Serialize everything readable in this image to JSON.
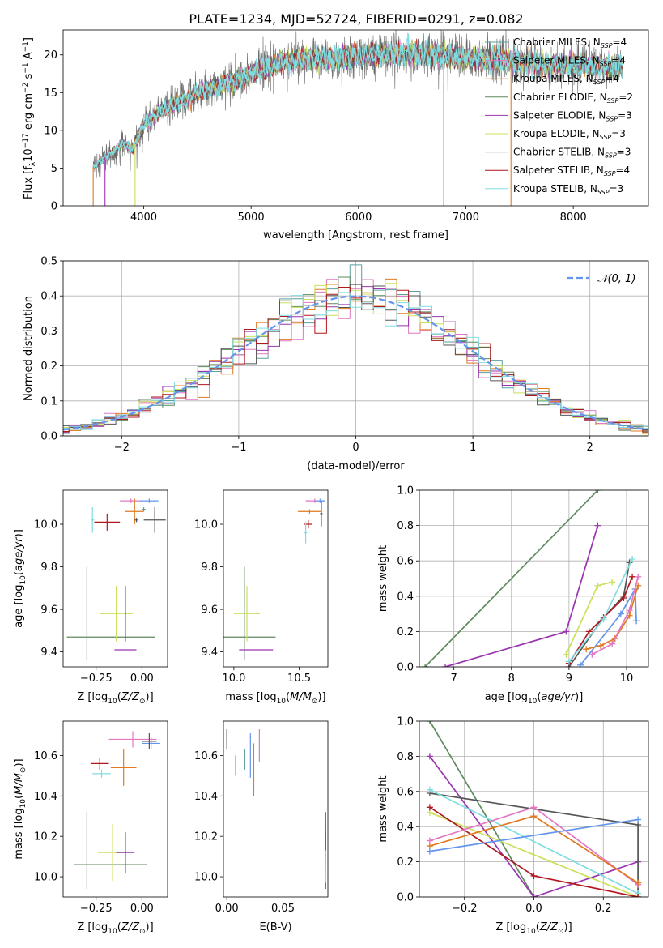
{
  "title": "PLATE=1234, MJD=52724, FIBERID=0291, z=0.082",
  "colors": {
    "Chabrier MILES": "#5aa0a0",
    "Salpeter MILES": "#e377c2",
    "Kroupa MILES": "#e07a20",
    "Chabrier ELODIE": "#5f8a5f",
    "Salpeter ELODIE": "#9a35b0",
    "Kroupa ELODIE": "#c8e05a",
    "Chabrier STELIB": "#555555",
    "Salpeter STELIB": "#b0171f",
    "Kroupa STELIB": "#7fdde0",
    "blue": "#6495ed"
  },
  "chart_data": [
    {
      "id": "spectrum",
      "type": "line",
      "xlabel": "wavelength [Angstrom, rest frame]",
      "ylabel": "Flux [f_λ10^-17 erg cm^-2 s^-1 A^-1]",
      "xlim": [
        3250,
        8700
      ],
      "ylim": [
        0,
        23.3
      ],
      "xticks": [
        4000,
        5000,
        6000,
        7000,
        8000
      ],
      "yticks": [
        0,
        5,
        10,
        15,
        20
      ],
      "legend_position": "top-right",
      "legend": [
        {
          "label": "Chabrier MILES, N",
          "sub": "SSP",
          "suffix": "=4",
          "color": "#5aa0a0"
        },
        {
          "label": "Salpeter MILES, N",
          "sub": "SSP",
          "suffix": "=4",
          "color": "#e377c2"
        },
        {
          "label": "Kroupa MILES, N",
          "sub": "SSP",
          "suffix": "=4",
          "color": "#e07a20"
        },
        {
          "label": "Chabrier ELODIE, N",
          "sub": "SSP",
          "suffix": "=2",
          "color": "#5f8a5f"
        },
        {
          "label": "Salpeter ELODIE, N",
          "sub": "SSP",
          "suffix": "=3",
          "color": "#9a35b0"
        },
        {
          "label": "Kroupa ELODIE, N",
          "sub": "SSP",
          "suffix": "=3",
          "color": "#c8e05a"
        },
        {
          "label": "Chabrier STELIB, N",
          "sub": "SSP",
          "suffix": "=3",
          "color": "#555555"
        },
        {
          "label": "Salpeter STELIB, N",
          "sub": "SSP",
          "suffix": "=4",
          "color": "#b0171f"
        },
        {
          "label": "Kroupa STELIB, N",
          "sub": "SSP",
          "suffix": "=3",
          "color": "#7fdde0"
        }
      ],
      "continuum": [
        [
          3530,
          5.2
        ],
        [
          3700,
          7.0
        ],
        [
          3800,
          8.3
        ],
        [
          3900,
          7.5
        ],
        [
          4000,
          10.8
        ],
        [
          4150,
          12.5
        ],
        [
          4300,
          13.5
        ],
        [
          4500,
          15.0
        ],
        [
          4700,
          15.8
        ],
        [
          4900,
          16.8
        ],
        [
          5100,
          18.2
        ],
        [
          5300,
          19.0
        ],
        [
          5600,
          19.5
        ],
        [
          5900,
          19.7
        ],
        [
          6200,
          20.0
        ],
        [
          6500,
          20.2
        ],
        [
          6800,
          19.8
        ],
        [
          7100,
          19.5
        ],
        [
          7400,
          19.2
        ],
        [
          7700,
          18.7
        ],
        [
          8000,
          18.6
        ],
        [
          8300,
          18.5
        ],
        [
          8460,
          18.4
        ]
      ],
      "data_range": [
        3530,
        8460
      ],
      "dropouts": [
        {
          "x": 3530,
          "color": "#e07a20"
        },
        {
          "x": 3640,
          "color": "#9a35b0"
        },
        {
          "x": 3920,
          "color": "#c8e05a"
        },
        {
          "x": 6790,
          "color": "#c8e05a"
        },
        {
          "x": 7420,
          "color": "#e07a20"
        }
      ]
    },
    {
      "id": "histogram",
      "type": "bar",
      "xlabel": "(data-model)/error",
      "ylabel": "Normed distribution",
      "xlim": [
        -2.5,
        2.5
      ],
      "ylim": [
        0,
        0.5
      ],
      "xticks": [
        -2,
        -1,
        0,
        1,
        2
      ],
      "yticks": [
        0.0,
        0.1,
        0.2,
        0.3,
        0.4,
        0.5
      ],
      "grid": true,
      "bin_width": 0.1,
      "legend_position": "top-right",
      "gaussian_label": "𝒩(0, 1)"
    },
    {
      "id": "age_vs_Z",
      "type": "scatter",
      "xlabel": "Z [log₁₀(Z/Z☉)]",
      "ylabel": "age [log₁₀(age/yr)]",
      "xlim": [
        -0.43,
        0.14
      ],
      "ylim": [
        9.33,
        10.16
      ],
      "xticks": [
        -0.25,
        0.0
      ],
      "yticks": [
        9.4,
        9.6,
        9.8,
        10.0
      ],
      "points": [
        {
          "x": -0.27,
          "y": 10.02,
          "xerr": 0.01,
          "yerr": 0.06,
          "color": "#7fdde0"
        },
        {
          "x": -0.06,
          "y": 10.11,
          "xerr": 0.06,
          "yerr": 0.01,
          "color": "#e377c2"
        },
        {
          "x": 0.04,
          "y": 10.11,
          "xerr": 0.05,
          "yerr": 0.01,
          "color": "#6495ed"
        },
        {
          "x": -0.04,
          "y": 10.06,
          "xerr": 0.05,
          "yerr": 0.06,
          "color": "#e07a20"
        },
        {
          "x": 0.01,
          "y": 10.07,
          "xerr": 0.01,
          "yerr": 0.01,
          "color": "#5aa0a0"
        },
        {
          "x": -0.03,
          "y": 10.02,
          "xerr": 0.01,
          "yerr": 0.01,
          "color": "#555555"
        },
        {
          "x": 0.07,
          "y": 10.02,
          "xerr": 0.06,
          "yerr": 0.06,
          "color": "#555555"
        },
        {
          "x": -0.19,
          "y": 10.01,
          "xerr": 0.07,
          "yerr": 0.04,
          "color": "#b0171f"
        },
        {
          "x": -0.3,
          "y": 9.58,
          "xerr": 0.0,
          "yerr": 0.22,
          "color": "#5f8a5f"
        },
        {
          "x": -0.17,
          "y": 9.47,
          "xerr": 0.24,
          "yerr": 0.0,
          "color": "#5f8a5f"
        },
        {
          "x": -0.14,
          "y": 9.58,
          "xerr": 0.09,
          "yerr": 0.13,
          "color": "#c8e05a"
        },
        {
          "x": -0.09,
          "y": 9.41,
          "xerr": 0.06,
          "yerr": 0.0,
          "color": "#9a35b0"
        },
        {
          "x": -0.09,
          "y": 9.58,
          "xerr": 0.0,
          "yerr": 0.13,
          "color": "#9a35b0"
        }
      ]
    },
    {
      "id": "age_vs_mass",
      "type": "scatter",
      "xlabel": "mass [log₁₀(M/M☉)]",
      "ylabel": "",
      "xlim": [
        9.92,
        10.72
      ],
      "ylim": [
        9.33,
        10.16
      ],
      "xticks": [
        10.0,
        10.5
      ],
      "yticks": [
        9.4,
        9.6,
        9.8,
        10.0
      ],
      "points": [
        {
          "x": 10.58,
          "y": 10.06,
          "xerr": 0.09,
          "yerr": 0.01,
          "color": "#e07a20"
        },
        {
          "x": 10.62,
          "y": 10.11,
          "xerr": 0.07,
          "yerr": 0.01,
          "color": "#e377c2"
        },
        {
          "x": 10.66,
          "y": 10.11,
          "xerr": 0.04,
          "yerr": 0.01,
          "color": "#6495ed"
        },
        {
          "x": 10.67,
          "y": 10.05,
          "xerr": 0.01,
          "yerr": 0.06,
          "color": "#555555"
        },
        {
          "x": 10.57,
          "y": 10.0,
          "xerr": 0.03,
          "yerr": 0.02,
          "color": "#b0171f"
        },
        {
          "x": 10.55,
          "y": 9.96,
          "xerr": 0.01,
          "yerr": 0.05,
          "color": "#7fdde0"
        },
        {
          "x": 10.08,
          "y": 9.58,
          "xerr": 0.0,
          "yerr": 0.22,
          "color": "#5f8a5f"
        },
        {
          "x": 10.08,
          "y": 9.47,
          "xerr": 0.24,
          "yerr": 0.0,
          "color": "#5f8a5f"
        },
        {
          "x": 10.1,
          "y": 9.58,
          "xerr": 0.1,
          "yerr": 0.13,
          "color": "#c8e05a"
        },
        {
          "x": 10.17,
          "y": 9.41,
          "xerr": 0.13,
          "yerr": 0.0,
          "color": "#9a35b0"
        }
      ]
    },
    {
      "id": "weight_vs_age",
      "type": "line",
      "xlabel": "age [log₁₀(age/yr)]",
      "ylabel": "mass weight",
      "xlim": [
        6.4,
        10.38
      ],
      "ylim": [
        0,
        1.0
      ],
      "xticks": [
        7,
        8,
        9,
        10
      ],
      "yticks": [
        0.0,
        0.2,
        0.4,
        0.6,
        0.8,
        1.0
      ],
      "grid": true,
      "series": [
        {
          "color": "#5f8a5f",
          "points": [
            [
              6.5,
              0.0
            ],
            [
              9.5,
              1.0
            ]
          ]
        },
        {
          "color": "#9a35b0",
          "points": [
            [
              6.85,
              0.0
            ],
            [
              8.95,
              0.2
            ],
            [
              9.5,
              0.8
            ]
          ]
        },
        {
          "color": "#c8e05a",
          "points": [
            [
              8.95,
              0.07
            ],
            [
              9.5,
              0.46
            ],
            [
              9.75,
              0.48
            ]
          ]
        },
        {
          "color": "#555555",
          "points": [
            [
              9.0,
              0.0
            ],
            [
              9.6,
              0.28
            ],
            [
              9.95,
              0.4
            ],
            [
              10.05,
              0.59
            ]
          ]
        },
        {
          "color": "#b0171f",
          "points": [
            [
              9.0,
              0.02
            ],
            [
              9.35,
              0.2
            ],
            [
              9.95,
              0.39
            ],
            [
              10.1,
              0.51
            ]
          ]
        },
        {
          "color": "#7fdde0",
          "points": [
            [
              9.0,
              0.03
            ],
            [
              9.6,
              0.27
            ],
            [
              10.1,
              0.61
            ]
          ]
        },
        {
          "color": "#6495ed",
          "points": [
            [
              9.2,
              0.01
            ],
            [
              9.9,
              0.3
            ],
            [
              10.15,
              0.44
            ],
            [
              10.17,
              0.26
            ]
          ]
        },
        {
          "color": "#e07a20",
          "points": [
            [
              9.3,
              0.1
            ],
            [
              9.55,
              0.12
            ],
            [
              9.8,
              0.16
            ],
            [
              10.05,
              0.29
            ],
            [
              10.2,
              0.46
            ]
          ]
        },
        {
          "color": "#e377c2",
          "points": [
            [
              9.4,
              0.07
            ],
            [
              9.75,
              0.13
            ],
            [
              10.05,
              0.32
            ],
            [
              10.2,
              0.51
            ]
          ]
        }
      ]
    },
    {
      "id": "mass_vs_Z",
      "type": "scatter",
      "xlabel": "Z [log₁₀(Z/Z☉)]",
      "ylabel": "mass [log₁₀(M/M☉)]",
      "xlim": [
        -0.43,
        0.14
      ],
      "ylim": [
        9.9,
        10.77
      ],
      "xticks": [
        -0.25,
        0.0
      ],
      "yticks": [
        10.0,
        10.2,
        10.4,
        10.6
      ],
      "points": [
        {
          "x": -0.05,
          "y": 10.68,
          "xerr": 0.13,
          "yerr": 0.04,
          "color": "#e377c2"
        },
        {
          "x": 0.05,
          "y": 10.66,
          "xerr": 0.05,
          "yerr": 0.03,
          "color": "#6495ed"
        },
        {
          "x": 0.04,
          "y": 10.67,
          "xerr": 0.04,
          "yerr": 0.04,
          "color": "#555555"
        },
        {
          "x": -0.1,
          "y": 10.54,
          "xerr": 0.07,
          "yerr": 0.09,
          "color": "#e07a20"
        },
        {
          "x": -0.23,
          "y": 10.56,
          "xerr": 0.05,
          "yerr": 0.03,
          "color": "#b0171f"
        },
        {
          "x": -0.22,
          "y": 10.51,
          "xerr": 0.05,
          "yerr": 0.02,
          "color": "#7fdde0"
        },
        {
          "x": -0.3,
          "y": 10.13,
          "xerr": 0.0,
          "yerr": 0.19,
          "color": "#5f8a5f"
        },
        {
          "x": -0.17,
          "y": 10.06,
          "xerr": 0.2,
          "yerr": 0.0,
          "color": "#5f8a5f"
        },
        {
          "x": -0.16,
          "y": 10.12,
          "xerr": 0.08,
          "yerr": 0.14,
          "color": "#c8e05a"
        },
        {
          "x": -0.09,
          "y": 10.12,
          "xerr": 0.05,
          "yerr": 0.1,
          "color": "#9a35b0"
        }
      ]
    },
    {
      "id": "mass_vs_ebv",
      "type": "scatter",
      "xlabel": "E(B-V)",
      "ylabel": "",
      "xlim": [
        -0.003,
        0.09
      ],
      "ylim": [
        9.9,
        10.77
      ],
      "xticks": [
        0.0,
        0.05
      ],
      "yticks": [
        10.0,
        10.2,
        10.4,
        10.6
      ],
      "points": [
        {
          "x": 0.0,
          "y": 10.68,
          "xerr": 0.0,
          "yerr": 0.05,
          "color": "#555555"
        },
        {
          "x": 0.008,
          "y": 10.55,
          "xerr": 0.0,
          "yerr": 0.05,
          "color": "#b0171f"
        },
        {
          "x": 0.016,
          "y": 10.58,
          "xerr": 0.0,
          "yerr": 0.05,
          "color": "#5aa0a0"
        },
        {
          "x": 0.021,
          "y": 10.6,
          "xerr": 0.0,
          "yerr": 0.11,
          "color": "#6495ed"
        },
        {
          "x": 0.024,
          "y": 10.53,
          "xerr": 0.0,
          "yerr": 0.13,
          "color": "#e07a20"
        },
        {
          "x": 0.029,
          "y": 10.65,
          "xerr": 0.0,
          "yerr": 0.08,
          "color": "#e377c2"
        },
        {
          "x": 0.088,
          "y": 10.13,
          "xerr": 0.0,
          "yerr": 0.19,
          "color": "#555555"
        },
        {
          "x": 0.088,
          "y": 10.13,
          "xerr": 0.0,
          "yerr": 0.1,
          "color": "#9a35b0"
        },
        {
          "x": 0.088,
          "y": 10.05,
          "xerr": 0.0,
          "yerr": 0.08,
          "color": "#c8e05a"
        }
      ]
    },
    {
      "id": "weight_vs_Z",
      "type": "line",
      "xlabel": "Z [log₁₀(Z/Z☉)]",
      "ylabel": "mass weight",
      "xlim": [
        -0.33,
        0.33
      ],
      "ylim": [
        0,
        1.0
      ],
      "xticks": [
        -0.2,
        0.0,
        0.2
      ],
      "yticks": [
        0.0,
        0.2,
        0.4,
        0.6,
        0.8,
        1.0
      ],
      "grid": true,
      "series": [
        {
          "color": "#5f8a5f",
          "points": [
            [
              -0.3,
              1.0
            ],
            [
              0.0,
              0.0
            ]
          ]
        },
        {
          "color": "#9a35b0",
          "points": [
            [
              -0.3,
              0.8
            ],
            [
              0.0,
              0.0
            ],
            [
              0.3,
              0.2
            ]
          ]
        },
        {
          "color": "#555555",
          "points": [
            [
              -0.3,
              0.59
            ],
            [
              0.3,
              0.41
            ],
            [
              0.3,
              0.0
            ]
          ]
        },
        {
          "color": "#7fdde0",
          "points": [
            [
              -0.3,
              0.61
            ],
            [
              0.3,
              0.02
            ]
          ]
        },
        {
          "color": "#c8e05a",
          "points": [
            [
              -0.3,
              0.48
            ],
            [
              0.3,
              0.0
            ]
          ]
        },
        {
          "color": "#b0171f",
          "points": [
            [
              -0.3,
              0.51
            ],
            [
              0.0,
              0.12
            ],
            [
              0.3,
              0.0
            ]
          ]
        },
        {
          "color": "#e377c2",
          "points": [
            [
              -0.3,
              0.32
            ],
            [
              0.0,
              0.51
            ],
            [
              0.3,
              0.07
            ]
          ]
        },
        {
          "color": "#e07a20",
          "points": [
            [
              -0.3,
              0.29
            ],
            [
              0.0,
              0.46
            ],
            [
              0.3,
              0.08
            ]
          ]
        },
        {
          "color": "#6495ed",
          "points": [
            [
              -0.3,
              0.26
            ],
            [
              0.3,
              0.44
            ]
          ]
        }
      ]
    }
  ]
}
